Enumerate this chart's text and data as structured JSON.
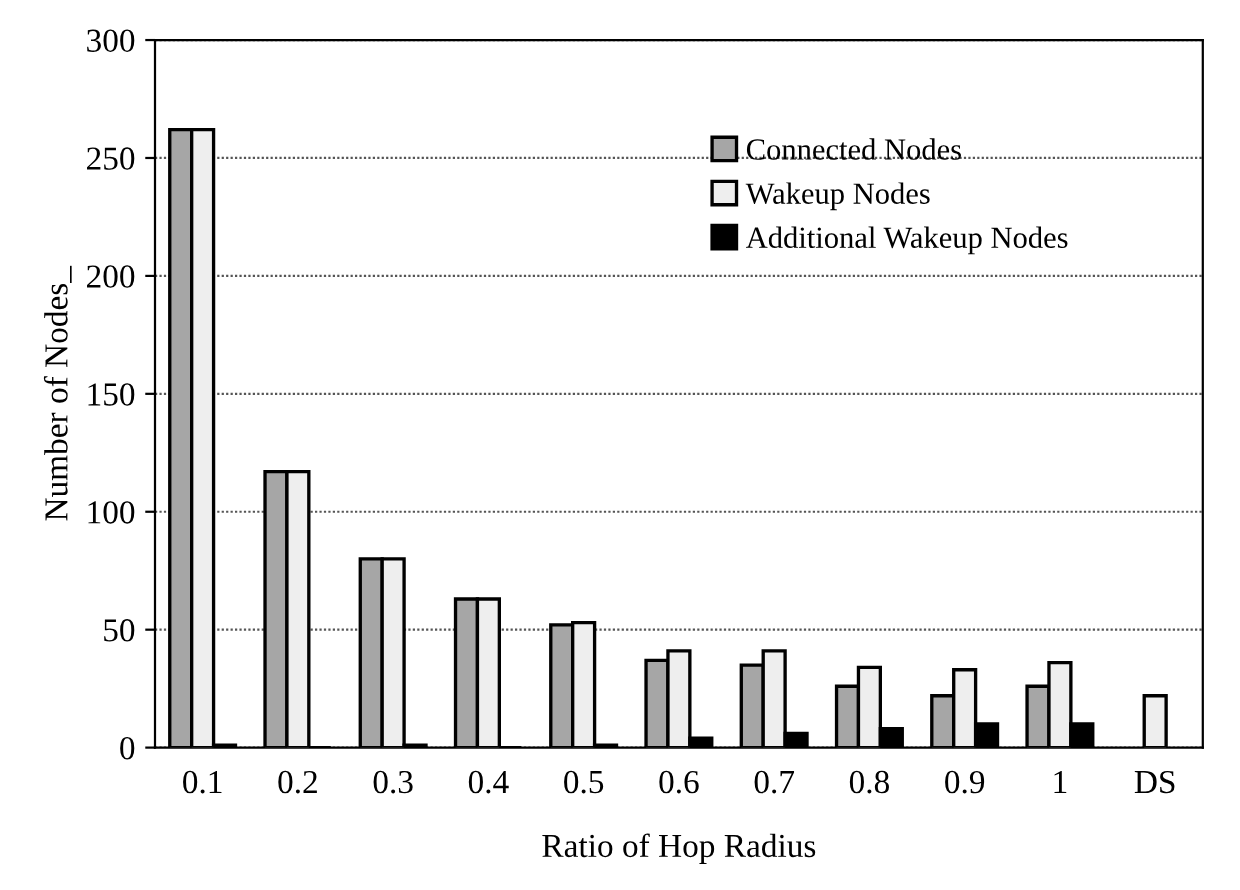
{
  "chart_data": {
    "type": "bar",
    "xlabel": "Ratio of Hop Radius",
    "ylabel": "Number of Nodes_",
    "categories": [
      "0.1",
      "0.2",
      "0.3",
      "0.4",
      "0.5",
      "0.6",
      "0.7",
      "0.8",
      "0.9",
      "1",
      "DS"
    ],
    "series": [
      {
        "name": "Connected Nodes",
        "color": "#a6a6a6",
        "values": [
          262,
          117,
          80,
          63,
          52,
          37,
          35,
          26,
          22,
          26,
          null
        ]
      },
      {
        "name": "Wakeup Nodes",
        "color": "#eeeeee",
        "values": [
          262,
          117,
          80,
          63,
          53,
          41,
          41,
          34,
          33,
          36,
          22
        ]
      },
      {
        "name": "Additional Wakeup Nodes",
        "color": "#000000",
        "values": [
          1,
          0,
          1,
          0,
          1,
          4,
          6,
          8,
          10,
          10,
          null
        ]
      }
    ],
    "ylim": [
      0,
      300
    ],
    "yticks": [
      0,
      50,
      100,
      150,
      200,
      250,
      300
    ],
    "grid": "y",
    "legend": "top right"
  }
}
